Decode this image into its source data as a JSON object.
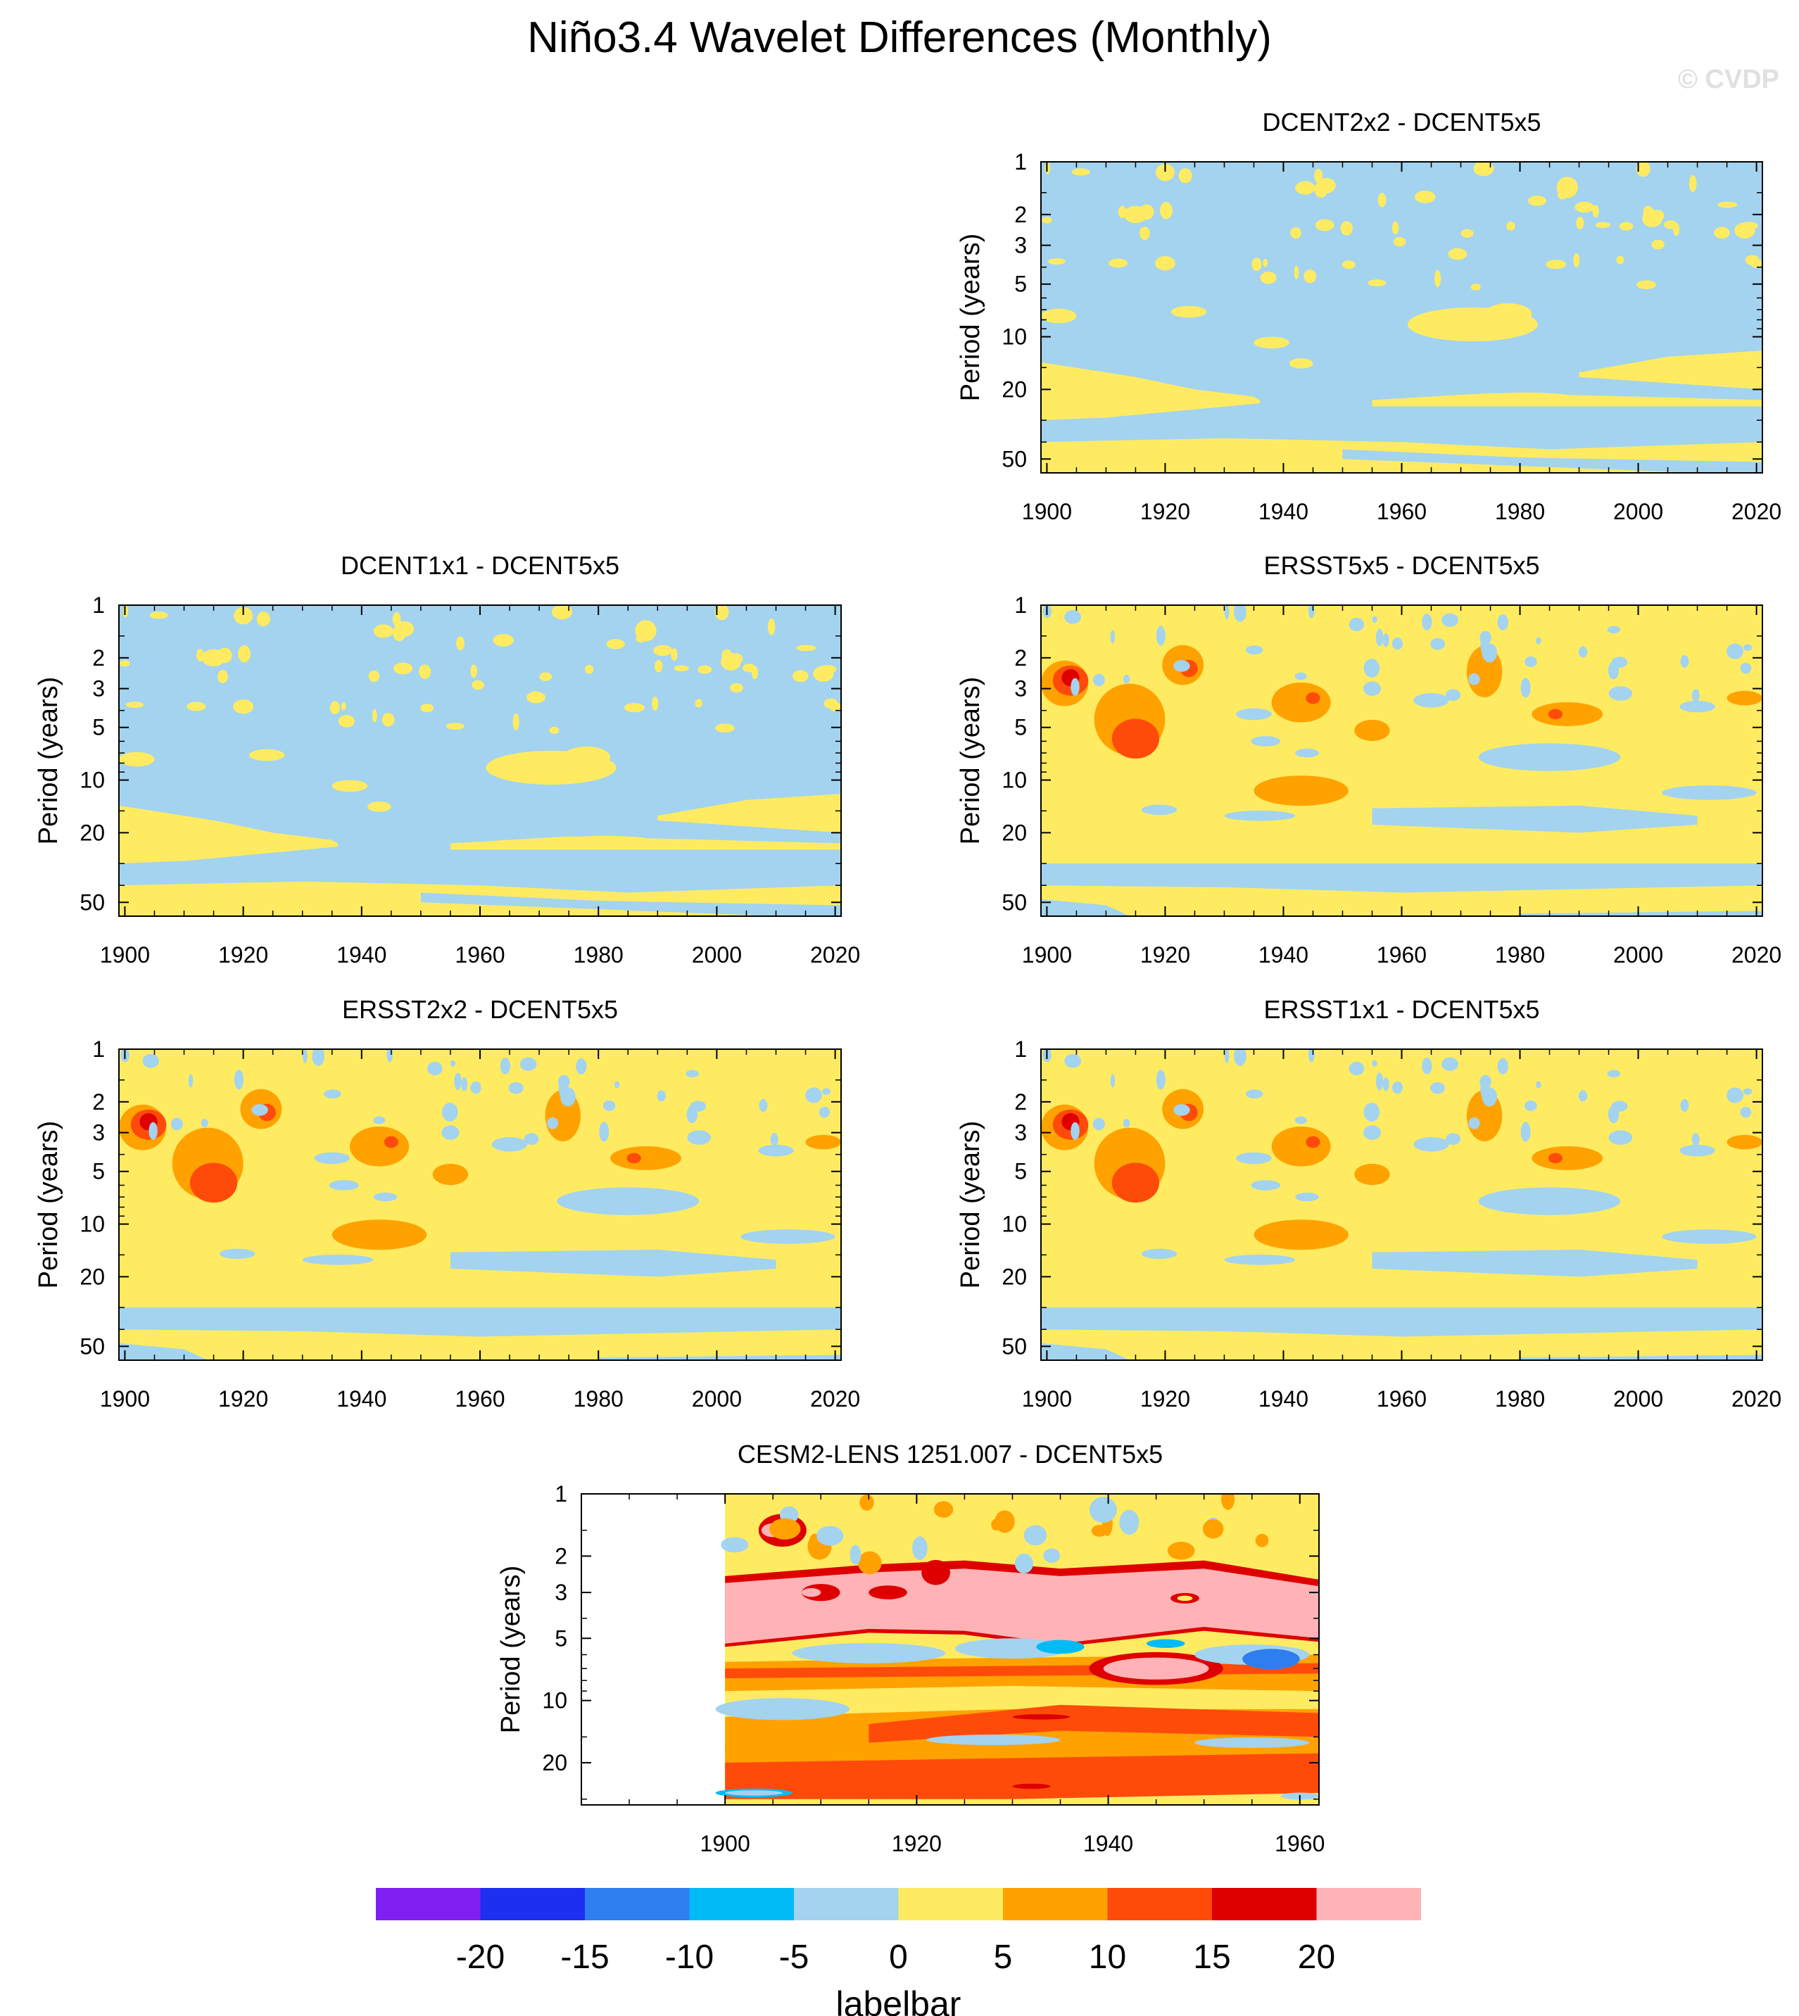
{
  "title": "Niño3.4 Wavelet Differences (Monthly)",
  "watermark": "© CVDP",
  "colors": {
    "purple": "#7f1ff2",
    "blue": "#1d2ff0",
    "midblue": "#2e7ef0",
    "cyan": "#00bbf5",
    "lightblue": "#a3d3ef",
    "yellow": "#ffeb62",
    "orange": "#ffa200",
    "redorange": "#ff4b0a",
    "red": "#de0000",
    "pink": "#ffb3b6"
  },
  "chart_data": [
    {
      "type": "heatmap",
      "title": "DCENT2x2 - DCENT5x5",
      "variant": "dcent",
      "ylabel": "Period (years)",
      "xticks": [
        "1900",
        "1920",
        "1940",
        "1960",
        "1980",
        "2000",
        "2020"
      ],
      "xlim": [
        1899,
        2021
      ],
      "yticks": [
        "1",
        "2",
        "3",
        "5",
        "10",
        "20",
        "50"
      ],
      "ylim": [
        1,
        60
      ],
      "background": "lightblue"
    },
    {
      "type": "heatmap",
      "title": "DCENT1x1 - DCENT5x5",
      "variant": "dcent",
      "ylabel": "Period (years)",
      "xticks": [
        "1900",
        "1920",
        "1940",
        "1960",
        "1980",
        "2000",
        "2020"
      ],
      "xlim": [
        1899,
        2021
      ],
      "yticks": [
        "1",
        "2",
        "3",
        "5",
        "10",
        "20",
        "50"
      ],
      "ylim": [
        1,
        60
      ],
      "background": "lightblue"
    },
    {
      "type": "heatmap",
      "title": "ERSST5x5 - DCENT5x5",
      "variant": "ersst",
      "ylabel": "Period (years)",
      "xticks": [
        "1900",
        "1920",
        "1940",
        "1960",
        "1980",
        "2000",
        "2020"
      ],
      "xlim": [
        1899,
        2021
      ],
      "yticks": [
        "1",
        "2",
        "3",
        "5",
        "10",
        "20",
        "50"
      ],
      "ylim": [
        1,
        60
      ],
      "background": "yellow"
    },
    {
      "type": "heatmap",
      "title": "ERSST2x2 - DCENT5x5",
      "variant": "ersst",
      "ylabel": "Period (years)",
      "xticks": [
        "1900",
        "1920",
        "1940",
        "1960",
        "1980",
        "2000",
        "2020"
      ],
      "xlim": [
        1899,
        2021
      ],
      "yticks": [
        "1",
        "2",
        "3",
        "5",
        "10",
        "20",
        "50"
      ],
      "ylim": [
        1,
        60
      ],
      "background": "yellow"
    },
    {
      "type": "heatmap",
      "title": "ERSST1x1 - DCENT5x5",
      "variant": "ersst",
      "ylabel": "Period (years)",
      "xticks": [
        "1900",
        "1920",
        "1940",
        "1960",
        "1980",
        "2000",
        "2020"
      ],
      "xlim": [
        1899,
        2021
      ],
      "yticks": [
        "1",
        "2",
        "3",
        "5",
        "10",
        "20",
        "50"
      ],
      "ylim": [
        1,
        60
      ],
      "background": "yellow"
    },
    {
      "type": "heatmap",
      "title": "CESM2-LENS 1251.007 - DCENT5x5",
      "variant": "cesm",
      "ylabel": "Period (years)",
      "xticks": [
        "1900",
        "1920",
        "1940",
        "1960"
      ],
      "xlim": [
        1885,
        1962
      ],
      "yticks": [
        "1",
        "2",
        "3",
        "5",
        "10",
        "20"
      ],
      "ylim": [
        1,
        32
      ],
      "data_start": 1900,
      "background": "yellow"
    }
  ],
  "labelbar": {
    "title": "labelbar",
    "labels": [
      "-20",
      "-15",
      "-10",
      "-5",
      "0",
      "5",
      "10",
      "15",
      "20"
    ],
    "colors": [
      "purple",
      "blue",
      "midblue",
      "cyan",
      "lightblue",
      "yellow",
      "orange",
      "redorange",
      "red",
      "pink"
    ]
  }
}
